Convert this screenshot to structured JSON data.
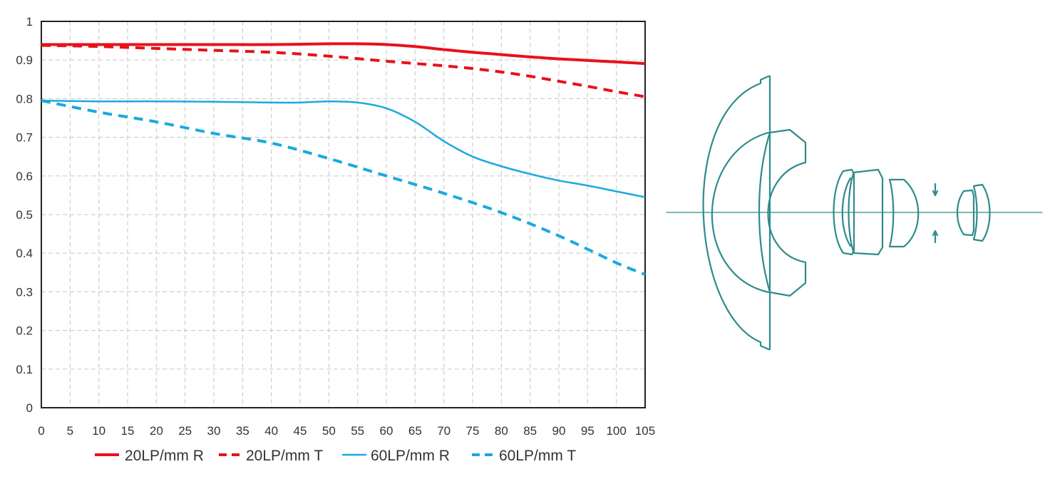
{
  "chart_data": {
    "type": "line",
    "title": "",
    "xlabel": "",
    "ylabel": "",
    "xlim": [
      0,
      105
    ],
    "ylim": [
      0,
      1
    ],
    "x_ticks": [
      0,
      5,
      10,
      15,
      20,
      25,
      30,
      35,
      40,
      45,
      50,
      55,
      60,
      65,
      70,
      75,
      80,
      85,
      90,
      95,
      100,
      105
    ],
    "y_ticks": [
      0,
      0.1,
      0.2,
      0.3,
      0.4,
      0.5,
      0.6,
      0.7,
      0.8,
      0.9,
      1
    ],
    "y_tick_labels": [
      "0",
      "0.1",
      "0.2",
      "0.3",
      "0.4",
      "0.5",
      "0.6",
      "0.7",
      "0.8",
      "0.9",
      "1"
    ],
    "grid": true,
    "legend_position": "bottom",
    "series": [
      {
        "name": "20LP/mm R",
        "color": "#e8111a",
        "style": "solid",
        "x": [
          0,
          10,
          20,
          30,
          40,
          50,
          55,
          60,
          65,
          70,
          75,
          80,
          85,
          90,
          95,
          100,
          105
        ],
        "values": [
          0.94,
          0.94,
          0.94,
          0.94,
          0.94,
          0.942,
          0.942,
          0.94,
          0.935,
          0.927,
          0.92,
          0.914,
          0.908,
          0.903,
          0.899,
          0.895,
          0.891
        ]
      },
      {
        "name": "20LP/mm T",
        "color": "#e8111a",
        "style": "dashed",
        "x": [
          0,
          10,
          20,
          30,
          40,
          50,
          60,
          70,
          75,
          80,
          85,
          90,
          95,
          100,
          105
        ],
        "values": [
          0.938,
          0.935,
          0.93,
          0.925,
          0.92,
          0.91,
          0.897,
          0.885,
          0.878,
          0.869,
          0.858,
          0.845,
          0.832,
          0.818,
          0.805
        ]
      },
      {
        "name": "60LP/mm R",
        "color": "#1aa9e0",
        "style": "solid",
        "x": [
          0,
          10,
          20,
          30,
          40,
          45,
          50,
          55,
          60,
          65,
          70,
          75,
          80,
          85,
          90,
          95,
          100,
          105
        ],
        "values": [
          0.795,
          0.793,
          0.793,
          0.792,
          0.79,
          0.79,
          0.793,
          0.79,
          0.775,
          0.74,
          0.69,
          0.65,
          0.625,
          0.605,
          0.588,
          0.575,
          0.56,
          0.545
        ]
      },
      {
        "name": "60LP/mm T",
        "color": "#1aa9e0",
        "style": "dashed",
        "x": [
          0,
          10,
          20,
          30,
          40,
          50,
          60,
          70,
          80,
          90,
          100,
          105
        ],
        "values": [
          0.795,
          0.765,
          0.74,
          0.71,
          0.685,
          0.645,
          0.6,
          0.555,
          0.505,
          0.445,
          0.375,
          0.345
        ]
      }
    ]
  },
  "lens_diagram": {
    "line_color": "#2e8b8b"
  }
}
